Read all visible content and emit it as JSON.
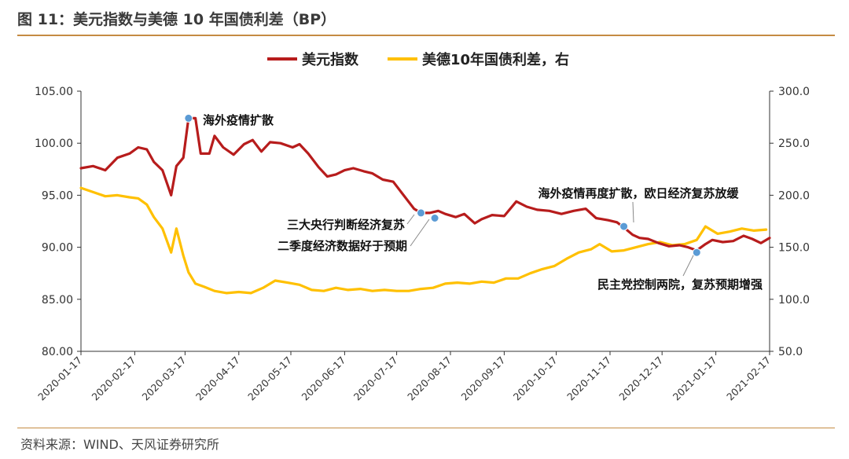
{
  "figure": {
    "title": "图 11：美元指数与美德 10 年国债利差（BP）",
    "source": "资料来源：WIND、天风证券研究所"
  },
  "chart_data": {
    "type": "line",
    "x_labels": [
      "2020-01-17",
      "2020-02-17",
      "2020-03-17",
      "2020-04-17",
      "2020-05-17",
      "2020-06-17",
      "2020-07-17",
      "2020-08-17",
      "2020-09-17",
      "2020-10-17",
      "2020-11-17",
      "2020-12-17",
      "2021-01-17",
      "2021-02-17"
    ],
    "y_left": {
      "min": 80,
      "max": 105,
      "ticks": [
        "80.00",
        "85.00",
        "90.00",
        "95.00",
        "100.00",
        "105.00"
      ]
    },
    "y_right": {
      "min": 50,
      "max": 300,
      "ticks": [
        "50.0",
        "100.0",
        "150.0",
        "200.0",
        "250.0",
        "300.0"
      ]
    },
    "legend_position": "top-center",
    "colors": {
      "dxy": "#b71c1c",
      "spread": "#ffc000",
      "marker": "#5b9bd5"
    },
    "series": [
      {
        "name": "美元指数",
        "axis": "left",
        "color": "#b71c1c",
        "points": [
          [
            "2020-01-17",
            97.6
          ],
          [
            "2020-01-24",
            97.8
          ],
          [
            "2020-01-31",
            97.4
          ],
          [
            "2020-02-07",
            98.6
          ],
          [
            "2020-02-14",
            99.0
          ],
          [
            "2020-02-19",
            99.6
          ],
          [
            "2020-02-24",
            99.4
          ],
          [
            "2020-02-28",
            98.2
          ],
          [
            "2020-03-04",
            97.4
          ],
          [
            "2020-03-09",
            95.0
          ],
          [
            "2020-03-12",
            97.8
          ],
          [
            "2020-03-16",
            98.6
          ],
          [
            "2020-03-19",
            102.4
          ],
          [
            "2020-03-23",
            102.4
          ],
          [
            "2020-03-26",
            99.0
          ],
          [
            "2020-03-31",
            99.0
          ],
          [
            "2020-04-03",
            100.7
          ],
          [
            "2020-04-08",
            99.6
          ],
          [
            "2020-04-14",
            98.9
          ],
          [
            "2020-04-20",
            99.9
          ],
          [
            "2020-04-25",
            100.3
          ],
          [
            "2020-04-30",
            99.2
          ],
          [
            "2020-05-05",
            100.1
          ],
          [
            "2020-05-11",
            100.0
          ],
          [
            "2020-05-18",
            99.6
          ],
          [
            "2020-05-22",
            99.9
          ],
          [
            "2020-05-27",
            99.0
          ],
          [
            "2020-06-02",
            97.7
          ],
          [
            "2020-06-07",
            96.8
          ],
          [
            "2020-06-12",
            97.0
          ],
          [
            "2020-06-17",
            97.4
          ],
          [
            "2020-06-22",
            97.6
          ],
          [
            "2020-06-28",
            97.3
          ],
          [
            "2020-07-03",
            97.1
          ],
          [
            "2020-07-09",
            96.5
          ],
          [
            "2020-07-15",
            96.3
          ],
          [
            "2020-07-21",
            95.0
          ],
          [
            "2020-07-27",
            93.7
          ],
          [
            "2020-07-31",
            93.3
          ],
          [
            "2020-08-05",
            93.3
          ],
          [
            "2020-08-10",
            93.5
          ],
          [
            "2020-08-14",
            93.2
          ],
          [
            "2020-08-20",
            92.9
          ],
          [
            "2020-08-25",
            93.2
          ],
          [
            "2020-08-31",
            92.3
          ],
          [
            "2020-09-04",
            92.7
          ],
          [
            "2020-09-10",
            93.1
          ],
          [
            "2020-09-17",
            93.0
          ],
          [
            "2020-09-24",
            94.4
          ],
          [
            "2020-09-30",
            93.9
          ],
          [
            "2020-10-06",
            93.6
          ],
          [
            "2020-10-13",
            93.5
          ],
          [
            "2020-10-20",
            93.2
          ],
          [
            "2020-10-27",
            93.5
          ],
          [
            "2020-11-03",
            93.7
          ],
          [
            "2020-11-09",
            92.8
          ],
          [
            "2020-11-16",
            92.6
          ],
          [
            "2020-11-21",
            92.4
          ],
          [
            "2020-11-25",
            91.9
          ],
          [
            "2020-11-30",
            91.2
          ],
          [
            "2020-12-04",
            90.9
          ],
          [
            "2020-12-09",
            90.8
          ],
          [
            "2020-12-15",
            90.4
          ],
          [
            "2020-12-21",
            90.1
          ],
          [
            "2020-12-27",
            90.2
          ],
          [
            "2021-01-01",
            90.0
          ],
          [
            "2021-01-06",
            89.7
          ],
          [
            "2021-01-11",
            90.3
          ],
          [
            "2021-01-15",
            90.7
          ],
          [
            "2021-01-21",
            90.5
          ],
          [
            "2021-01-27",
            90.6
          ],
          [
            "2021-02-02",
            91.1
          ],
          [
            "2021-02-07",
            90.8
          ],
          [
            "2021-02-12",
            90.4
          ],
          [
            "2021-02-17",
            90.9
          ]
        ]
      },
      {
        "name": "美德10年国债利差，右",
        "axis": "right",
        "color": "#ffc000",
        "points": [
          [
            "2020-01-17",
            207
          ],
          [
            "2020-01-24",
            203
          ],
          [
            "2020-01-31",
            199
          ],
          [
            "2020-02-07",
            200
          ],
          [
            "2020-02-14",
            198
          ],
          [
            "2020-02-19",
            197
          ],
          [
            "2020-02-24",
            191
          ],
          [
            "2020-02-28",
            179
          ],
          [
            "2020-03-04",
            168
          ],
          [
            "2020-03-09",
            145
          ],
          [
            "2020-03-12",
            168
          ],
          [
            "2020-03-16",
            142
          ],
          [
            "2020-03-19",
            126
          ],
          [
            "2020-03-23",
            115
          ],
          [
            "2020-03-28",
            112
          ],
          [
            "2020-04-03",
            108
          ],
          [
            "2020-04-10",
            106
          ],
          [
            "2020-04-17",
            107
          ],
          [
            "2020-04-24",
            106
          ],
          [
            "2020-05-01",
            111
          ],
          [
            "2020-05-08",
            118
          ],
          [
            "2020-05-15",
            116
          ],
          [
            "2020-05-22",
            114
          ],
          [
            "2020-05-29",
            109
          ],
          [
            "2020-06-05",
            108
          ],
          [
            "2020-06-12",
            111
          ],
          [
            "2020-06-19",
            109
          ],
          [
            "2020-06-26",
            110
          ],
          [
            "2020-07-03",
            108
          ],
          [
            "2020-07-10",
            109
          ],
          [
            "2020-07-17",
            108
          ],
          [
            "2020-07-24",
            108
          ],
          [
            "2020-07-31",
            110
          ],
          [
            "2020-08-07",
            111
          ],
          [
            "2020-08-14",
            115
          ],
          [
            "2020-08-21",
            116
          ],
          [
            "2020-08-28",
            115
          ],
          [
            "2020-09-04",
            117
          ],
          [
            "2020-09-11",
            116
          ],
          [
            "2020-09-18",
            120
          ],
          [
            "2020-09-25",
            120
          ],
          [
            "2020-10-02",
            125
          ],
          [
            "2020-10-09",
            129
          ],
          [
            "2020-10-16",
            132
          ],
          [
            "2020-10-23",
            139
          ],
          [
            "2020-10-30",
            145
          ],
          [
            "2020-11-06",
            148
          ],
          [
            "2020-11-11",
            153
          ],
          [
            "2020-11-18",
            146
          ],
          [
            "2020-11-25",
            147
          ],
          [
            "2020-12-02",
            150
          ],
          [
            "2020-12-09",
            153
          ],
          [
            "2020-12-16",
            155
          ],
          [
            "2020-12-23",
            152
          ],
          [
            "2020-12-30",
            153
          ],
          [
            "2021-01-06",
            157
          ],
          [
            "2021-01-11",
            170
          ],
          [
            "2021-01-18",
            163
          ],
          [
            "2021-01-25",
            165
          ],
          [
            "2021-02-01",
            168
          ],
          [
            "2021-02-08",
            166
          ],
          [
            "2021-02-15",
            167
          ]
        ]
      }
    ],
    "annotations": [
      {
        "text": "海外疫情扩散",
        "x": "2020-03-19",
        "axis": "left",
        "value": 102.4
      },
      {
        "text": "三大央行判断经济复苏",
        "x": "2020-07-31",
        "axis": "left",
        "value": 93.3
      },
      {
        "text": "二季度经济数据好于预期",
        "x": "2020-08-08",
        "axis": "left",
        "value": 92.8
      },
      {
        "text": "海外疫情再度扩散，欧日经济复苏放缓",
        "x": "2020-11-25",
        "axis": "left",
        "value": 92.0
      },
      {
        "text": "民主党控制两院，复苏预期增强",
        "x": "2021-01-06",
        "axis": "left",
        "value": 89.5
      }
    ]
  }
}
